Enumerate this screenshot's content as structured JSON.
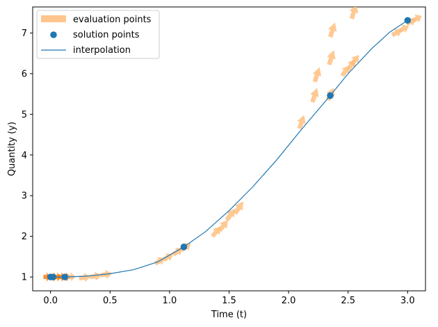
{
  "chart_data": {
    "type": "line",
    "xlabel": "Time (t)",
    "ylabel": "Quantity (y)",
    "xlim": [
      -0.15,
      3.15
    ],
    "ylim": [
      0.66,
      7.64
    ],
    "xticks": [
      0.0,
      0.5,
      1.0,
      1.5,
      2.0,
      2.5,
      3.0
    ],
    "xtick_labels": [
      "0.0",
      "0.5",
      "1.0",
      "1.5",
      "2.0",
      "2.5",
      "3.0"
    ],
    "yticks": [
      1,
      2,
      3,
      4,
      5,
      6,
      7
    ],
    "ytick_labels": [
      "1",
      "2",
      "3",
      "4",
      "5",
      "6",
      "7"
    ],
    "grid": false,
    "legend_position": "top-left",
    "colors": {
      "evaluation": "#ffbb78",
      "evaluation_dense": "#ff7f0e",
      "solution": "#1f77b4",
      "interpolation": "#1f77b4"
    },
    "legend": [
      {
        "label": "evaluation points",
        "marker": "arrow-patch",
        "color": "#ffbb78"
      },
      {
        "label": "solution points",
        "marker": "circle",
        "color": "#1f77b4"
      },
      {
        "label": "interpolation",
        "marker": "line",
        "color": "#1f77b4"
      }
    ],
    "series": [
      {
        "name": "solution points",
        "type": "scatter",
        "points": [
          {
            "x": 0.0,
            "y": 1.0
          },
          {
            "x": 0.02,
            "y": 1.0
          },
          {
            "x": 0.12,
            "y": 1.0
          },
          {
            "x": 1.12,
            "y": 1.74
          },
          {
            "x": 2.35,
            "y": 5.46
          },
          {
            "x": 3.0,
            "y": 7.31
          }
        ]
      },
      {
        "name": "interpolation",
        "type": "line",
        "points": [
          {
            "x": 0.0,
            "y": 1.0
          },
          {
            "x": 0.12,
            "y": 1.0
          },
          {
            "x": 0.3,
            "y": 1.02
          },
          {
            "x": 0.5,
            "y": 1.08
          },
          {
            "x": 0.7,
            "y": 1.18
          },
          {
            "x": 0.9,
            "y": 1.37
          },
          {
            "x": 1.12,
            "y": 1.74
          },
          {
            "x": 1.3,
            "y": 2.11
          },
          {
            "x": 1.5,
            "y": 2.63
          },
          {
            "x": 1.7,
            "y": 3.22
          },
          {
            "x": 1.9,
            "y": 3.88
          },
          {
            "x": 2.1,
            "y": 4.6
          },
          {
            "x": 2.35,
            "y": 5.46
          },
          {
            "x": 2.5,
            "y": 6.0
          },
          {
            "x": 2.7,
            "y": 6.62
          },
          {
            "x": 2.85,
            "y": 7.02
          },
          {
            "x": 3.0,
            "y": 7.31
          }
        ]
      },
      {
        "name": "evaluation points",
        "type": "quiver",
        "points": [
          {
            "x": -0.06,
            "y": 1.0,
            "dx": 0.06,
            "dy": 0.0
          },
          {
            "x": 0.0,
            "y": 1.0,
            "dx": 0.06,
            "dy": 0.0
          },
          {
            "x": 0.03,
            "y": 1.0,
            "dx": 0.06,
            "dy": 0.0
          },
          {
            "x": 0.06,
            "y": 1.0,
            "dx": 0.07,
            "dy": 0.0
          },
          {
            "x": 0.1,
            "y": 1.0,
            "dx": 0.07,
            "dy": 0.0
          },
          {
            "x": 0.14,
            "y": 1.0,
            "dx": 0.07,
            "dy": 0.01
          },
          {
            "x": 0.24,
            "y": 0.97,
            "dx": 0.1,
            "dy": 0.04
          },
          {
            "x": 0.33,
            "y": 1.0,
            "dx": 0.1,
            "dy": 0.04
          },
          {
            "x": 0.42,
            "y": 1.04,
            "dx": 0.1,
            "dy": 0.05
          },
          {
            "x": 0.88,
            "y": 1.33,
            "dx": 0.08,
            "dy": 0.14
          },
          {
            "x": 0.95,
            "y": 1.42,
            "dx": 0.08,
            "dy": 0.15
          },
          {
            "x": 1.03,
            "y": 1.55,
            "dx": 0.08,
            "dy": 0.16
          },
          {
            "x": 1.1,
            "y": 1.66,
            "dx": 0.08,
            "dy": 0.17
          },
          {
            "x": 1.36,
            "y": 2.0,
            "dx": 0.07,
            "dy": 0.24
          },
          {
            "x": 1.42,
            "y": 2.14,
            "dx": 0.07,
            "dy": 0.26
          },
          {
            "x": 1.48,
            "y": 2.4,
            "dx": 0.07,
            "dy": 0.28
          },
          {
            "x": 1.55,
            "y": 2.56,
            "dx": 0.07,
            "dy": 0.3
          },
          {
            "x": 2.09,
            "y": 4.65,
            "dx": 0.04,
            "dy": 0.33
          },
          {
            "x": 2.2,
            "y": 5.3,
            "dx": 0.04,
            "dy": 0.35
          },
          {
            "x": 2.22,
            "y": 5.8,
            "dx": 0.04,
            "dy": 0.36
          },
          {
            "x": 2.33,
            "y": 5.35,
            "dx": 0.05,
            "dy": 0.3
          },
          {
            "x": 2.34,
            "y": 6.22,
            "dx": 0.04,
            "dy": 0.36
          },
          {
            "x": 2.35,
            "y": 6.9,
            "dx": 0.04,
            "dy": 0.36
          },
          {
            "x": 2.45,
            "y": 5.95,
            "dx": 0.06,
            "dy": 0.25
          },
          {
            "x": 2.5,
            "y": 6.1,
            "dx": 0.06,
            "dy": 0.25
          },
          {
            "x": 2.53,
            "y": 6.22,
            "dx": 0.06,
            "dy": 0.24
          },
          {
            "x": 2.53,
            "y": 7.35,
            "dx": 0.04,
            "dy": 0.36
          },
          {
            "x": 2.87,
            "y": 6.95,
            "dx": 0.08,
            "dy": 0.12
          },
          {
            "x": 2.93,
            "y": 7.05,
            "dx": 0.08,
            "dy": 0.12
          },
          {
            "x": 2.99,
            "y": 7.22,
            "dx": 0.08,
            "dy": 0.12
          },
          {
            "x": 3.04,
            "y": 7.3,
            "dx": 0.08,
            "dy": 0.12
          }
        ]
      }
    ]
  }
}
